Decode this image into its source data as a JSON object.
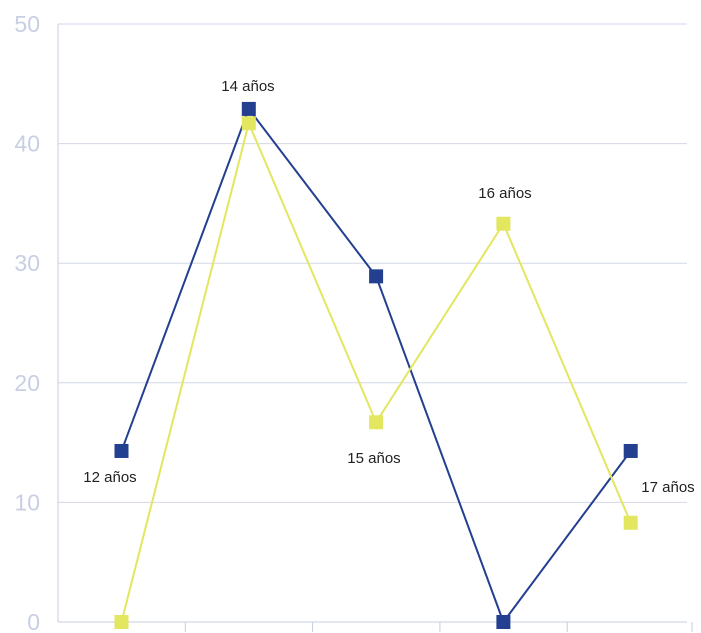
{
  "chart_data": {
    "type": "line",
    "title": "",
    "xlabel": "",
    "ylabel": "",
    "ylim": [
      0,
      50
    ],
    "yticks": [
      0,
      10,
      20,
      30,
      40,
      50
    ],
    "grid": true,
    "x": [
      1,
      2,
      3,
      4,
      5
    ],
    "series": [
      {
        "color": "#233f8f",
        "values": [
          14.3,
          42.9,
          28.9,
          0,
          14.3
        ]
      },
      {
        "color": "#e3e65f",
        "values": [
          0,
          41.7,
          16.7,
          33.3,
          8.3
        ]
      }
    ],
    "annotations": [
      "12 años",
      "14 años",
      "15 años",
      "16 años",
      "17 años"
    ],
    "colors": {
      "grid": "#d3d7e8",
      "axis": "#c7cbe0",
      "tick_text": "#c9cfe3",
      "label_text": "#222222"
    }
  }
}
